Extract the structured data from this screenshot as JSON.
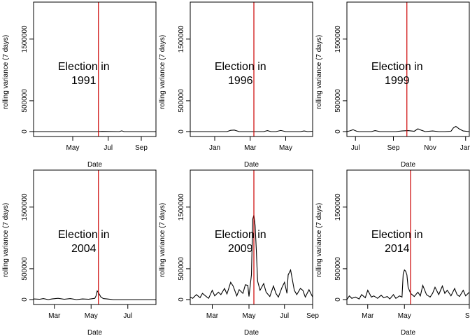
{
  "figure": {
    "background": "#ffffff",
    "line_color": "#000000",
    "marker_color": "#cc0000"
  },
  "chart_data": [
    {
      "type": "line",
      "title": "",
      "annotation_line1": "Election in",
      "annotation_line2": "1991",
      "xlabel": "Date",
      "ylabel": "rolling variance (7 days)",
      "ylim": [
        -80000,
        2100000
      ],
      "yticks": [
        0,
        500000,
        1500000
      ],
      "ytick_labels": [
        "0",
        "500000",
        "1500000"
      ],
      "xlim": [
        0,
        1
      ],
      "xticks": [
        0.32,
        0.61,
        0.88
      ],
      "xtick_labels": [
        "May",
        "Jul",
        "Sep"
      ],
      "election_x": 0.53,
      "series": [
        {
          "x": [
            0,
            0.2,
            0.4,
            0.52,
            0.56,
            0.7,
            0.72,
            0.74,
            0.9,
            1
          ],
          "y": [
            0,
            0,
            0,
            0,
            3000,
            0,
            12000,
            0,
            0,
            0
          ]
        }
      ]
    },
    {
      "type": "line",
      "title": "",
      "annotation_line1": "Election in",
      "annotation_line2": "1996",
      "xlabel": "Date",
      "ylabel": "rolling variance (7 days)",
      "ylim": [
        -80000,
        2100000
      ],
      "yticks": [
        0,
        500000,
        1500000
      ],
      "ytick_labels": [
        "0",
        "500000",
        "1500000"
      ],
      "xlim": [
        0,
        1
      ],
      "xticks": [
        0.2,
        0.49,
        0.78
      ],
      "xtick_labels": [
        "Jan",
        "Mar",
        "May"
      ],
      "election_x": 0.52,
      "series": [
        {
          "x": [
            0,
            0.2,
            0.3,
            0.33,
            0.36,
            0.4,
            0.5,
            0.6,
            0.63,
            0.66,
            0.7,
            0.74,
            0.78,
            0.9,
            0.93,
            0.96,
            1
          ],
          "y": [
            0,
            0,
            0,
            20000,
            25000,
            0,
            0,
            0,
            15000,
            0,
            0,
            18000,
            0,
            0,
            10000,
            0,
            5000
          ]
        }
      ]
    },
    {
      "type": "line",
      "title": "",
      "annotation_line1": "Election in",
      "annotation_line2": "1999",
      "xlabel": "Date",
      "ylabel": "rolling variance (7 days)",
      "ylim": [
        -80000,
        2100000
      ],
      "yticks": [
        0,
        500000,
        1500000
      ],
      "ytick_labels": [
        "0",
        "500000",
        "1500000"
      ],
      "xlim": [
        0,
        1
      ],
      "xticks": [
        0.07,
        0.38,
        0.68,
        0.97
      ],
      "xtick_labels": [
        "Jul",
        "Sep",
        "Nov",
        "Jan"
      ],
      "election_x": 0.49,
      "series": [
        {
          "x": [
            0,
            0.02,
            0.05,
            0.08,
            0.1,
            0.2,
            0.23,
            0.27,
            0.3,
            0.4,
            0.45,
            0.5,
            0.55,
            0.58,
            0.61,
            0.64,
            0.7,
            0.75,
            0.8,
            0.85,
            0.87,
            0.89,
            0.92,
            0.95,
            1
          ],
          "y": [
            0,
            10000,
            30000,
            5000,
            0,
            0,
            15000,
            0,
            0,
            0,
            10000,
            15000,
            5000,
            45000,
            20000,
            0,
            10000,
            0,
            0,
            5000,
            60000,
            85000,
            40000,
            10000,
            0
          ]
        }
      ]
    },
    {
      "type": "line",
      "title": "",
      "annotation_line1": "Election in",
      "annotation_line2": "2004",
      "xlabel": "Date",
      "ylabel": "rolling variance (7 days)",
      "ylim": [
        -80000,
        2100000
      ],
      "yticks": [
        0,
        500000,
        1500000
      ],
      "ytick_labels": [
        "0",
        "500000",
        "1500000"
      ],
      "xlim": [
        0,
        1
      ],
      "xticks": [
        0.17,
        0.47,
        0.77
      ],
      "xtick_labels": [
        "Mar",
        "May",
        "Jul"
      ],
      "election_x": 0.53,
      "series": [
        {
          "x": [
            0,
            0.05,
            0.08,
            0.12,
            0.15,
            0.2,
            0.25,
            0.3,
            0.35,
            0.4,
            0.45,
            0.5,
            0.51,
            0.52,
            0.53,
            0.55,
            0.57,
            0.6,
            0.65,
            0.7,
            0.8,
            0.9,
            1
          ],
          "y": [
            10000,
            5000,
            15000,
            0,
            10000,
            20000,
            5000,
            15000,
            0,
            10000,
            5000,
            20000,
            60000,
            140000,
            110000,
            40000,
            15000,
            10000,
            0,
            0,
            0,
            0,
            0
          ]
        }
      ]
    },
    {
      "type": "line",
      "title": "",
      "annotation_line1": "Election in",
      "annotation_line2": "2009",
      "xlabel": "Date",
      "ylabel": "rolling variance (7 days)",
      "ylim": [
        -80000,
        2100000
      ],
      "yticks": [
        0,
        500000,
        1500000
      ],
      "ytick_labels": [
        "0",
        "500000",
        "1500000"
      ],
      "xlim": [
        0,
        1
      ],
      "xticks": [
        0.18,
        0.48,
        0.77,
        1.0
      ],
      "xtick_labels": [
        "Mar",
        "May",
        "Jul",
        "Sep"
      ],
      "election_x": 0.52,
      "series": [
        {
          "x": [
            0,
            0.02,
            0.05,
            0.08,
            0.1,
            0.13,
            0.15,
            0.18,
            0.2,
            0.23,
            0.25,
            0.28,
            0.3,
            0.33,
            0.35,
            0.38,
            0.4,
            0.43,
            0.45,
            0.47,
            0.48,
            0.5,
            0.51,
            0.52,
            0.53,
            0.54,
            0.55,
            0.57,
            0.6,
            0.62,
            0.65,
            0.68,
            0.7,
            0.72,
            0.75,
            0.77,
            0.79,
            0.8,
            0.82,
            0.85,
            0.87,
            0.9,
            0.92,
            0.94,
            0.97,
            1
          ],
          "y": [
            40000,
            20000,
            80000,
            30000,
            100000,
            50000,
            20000,
            150000,
            60000,
            120000,
            80000,
            180000,
            90000,
            280000,
            220000,
            60000,
            160000,
            100000,
            240000,
            230000,
            50000,
            400000,
            1300000,
            1370000,
            1200000,
            800000,
            300000,
            150000,
            260000,
            120000,
            50000,
            220000,
            100000,
            40000,
            200000,
            280000,
            100000,
            400000,
            480000,
            150000,
            80000,
            180000,
            150000,
            40000,
            160000,
            40000
          ]
        }
      ]
    },
    {
      "type": "line",
      "title": "",
      "annotation_line1": "Election in",
      "annotation_line2": "2014",
      "xlabel": "Date",
      "ylabel": "rolling variance (7 days)",
      "ylim": [
        -80000,
        2100000
      ],
      "yticks": [
        0,
        500000,
        1500000
      ],
      "ytick_labels": [
        "0",
        "500000",
        "1500000"
      ],
      "xlim": [
        0,
        1
      ],
      "xticks": [
        0.17,
        0.47,
        1.0
      ],
      "xtick_labels": [
        "Mar",
        "May",
        "Se"
      ],
      "election_x": 0.52,
      "series": [
        {
          "x": [
            0,
            0.02,
            0.04,
            0.07,
            0.1,
            0.12,
            0.15,
            0.17,
            0.2,
            0.22,
            0.25,
            0.28,
            0.3,
            0.33,
            0.35,
            0.38,
            0.4,
            0.43,
            0.45,
            0.46,
            0.47,
            0.48,
            0.49,
            0.5,
            0.52,
            0.55,
            0.58,
            0.6,
            0.62,
            0.65,
            0.68,
            0.7,
            0.72,
            0.75,
            0.78,
            0.8,
            0.82,
            0.85,
            0.88,
            0.9,
            0.92,
            0.95,
            0.97,
            1
          ],
          "y": [
            0,
            60000,
            20000,
            40000,
            10000,
            80000,
            30000,
            150000,
            40000,
            60000,
            20000,
            70000,
            30000,
            50000,
            10000,
            80000,
            20000,
            60000,
            40000,
            420000,
            480000,
            460000,
            400000,
            200000,
            100000,
            50000,
            120000,
            60000,
            230000,
            80000,
            40000,
            100000,
            200000,
            80000,
            220000,
            100000,
            150000,
            60000,
            180000,
            80000,
            50000,
            150000,
            60000,
            120000
          ]
        }
      ]
    }
  ]
}
